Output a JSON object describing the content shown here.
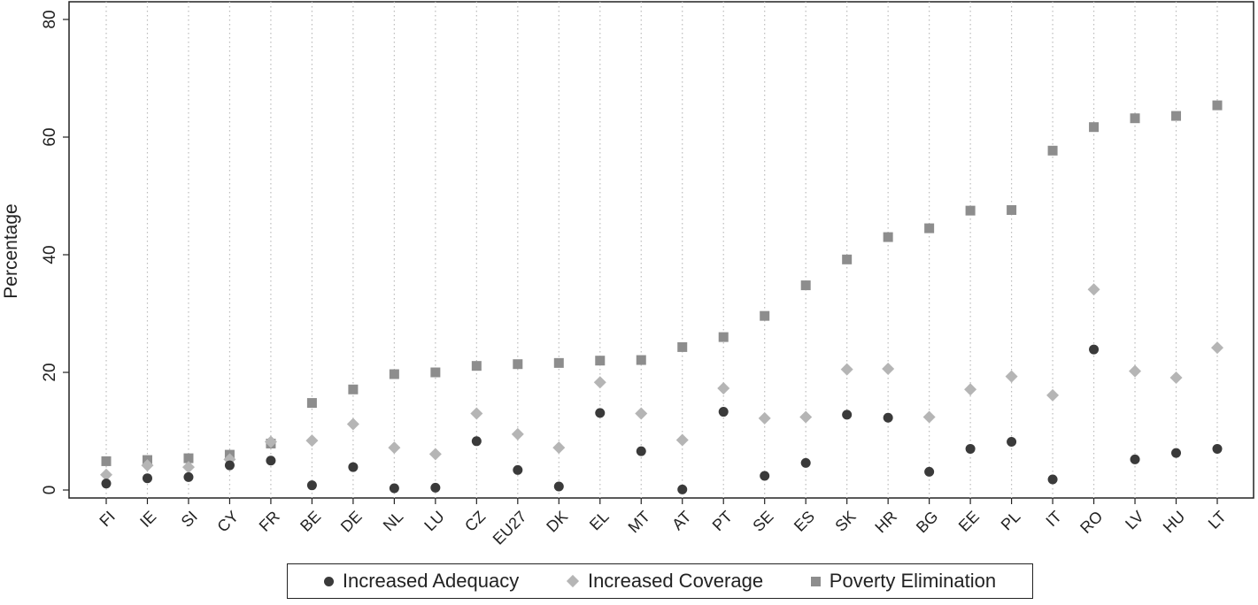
{
  "chart_data": {
    "type": "scatter",
    "ylabel": "Percentage",
    "xlabel": "",
    "ylim": [
      0,
      80
    ],
    "yticks": [
      0,
      20,
      40,
      60,
      80
    ],
    "grid": "vertical dotted lines at each category",
    "legend_position": "bottom",
    "categories": [
      "FI",
      "IE",
      "SI",
      "CY",
      "FR",
      "BE",
      "DE",
      "NL",
      "LU",
      "CZ",
      "EU27",
      "DK",
      "EL",
      "MT",
      "AT",
      "PT",
      "SE",
      "ES",
      "SK",
      "HR",
      "BG",
      "EE",
      "PL",
      "IT",
      "RO",
      "LV",
      "HU",
      "LT"
    ],
    "series": [
      {
        "name": "Increased Adequacy",
        "marker": "circle",
        "color": "#3a3a3a",
        "values": [
          1.1,
          2.0,
          2.2,
          4.2,
          5.0,
          0.8,
          3.9,
          0.3,
          0.4,
          8.3,
          3.4,
          0.6,
          13.1,
          6.6,
          0.1,
          13.3,
          2.4,
          4.6,
          12.8,
          12.3,
          3.1,
          7.0,
          8.2,
          1.8,
          23.9,
          5.2,
          6.3,
          7.0
        ]
      },
      {
        "name": "Increased Coverage",
        "marker": "diamond",
        "color": "#b5b5b5",
        "values": [
          2.6,
          4.2,
          3.9,
          5.2,
          8.2,
          8.4,
          11.2,
          7.2,
          6.1,
          13.0,
          9.5,
          7.2,
          18.3,
          13.0,
          8.5,
          17.3,
          12.2,
          12.4,
          20.5,
          20.6,
          12.4,
          17.1,
          19.3,
          16.1,
          34.1,
          20.2,
          19.1,
          24.2
        ]
      },
      {
        "name": "Poverty Elimination",
        "marker": "square",
        "color": "#8d8d8d",
        "values": [
          4.9,
          5.1,
          5.4,
          6.0,
          7.9,
          14.8,
          17.1,
          19.7,
          20.0,
          21.1,
          21.4,
          21.6,
          22.0,
          22.1,
          24.3,
          26.0,
          29.6,
          34.8,
          39.2,
          43.0,
          44.5,
          47.5,
          47.6,
          57.7,
          61.7,
          63.2,
          63.6,
          65.4
        ]
      }
    ]
  }
}
